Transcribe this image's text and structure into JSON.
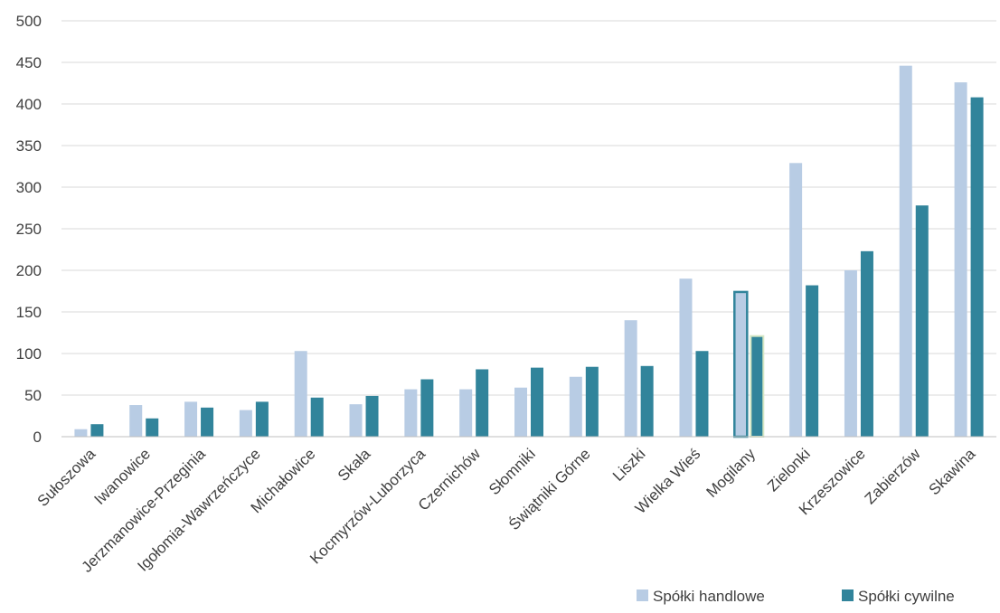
{
  "chart_data": {
    "type": "bar",
    "categories": [
      "Sułoszowa",
      "Iwanowice",
      "Jerzmanowice-Przeginia",
      "Igołomia-Wawrzeńczyce",
      "Michałowice",
      "Skała",
      "Kocmyrzów-Luborzyca",
      "Czernichów",
      "Słomniki",
      "Świątniki Górne",
      "Liszki",
      "Wielka Wieś",
      "Mogilany",
      "Zielonki",
      "Krzeszowice",
      "Zabierzów",
      "Skawina"
    ],
    "series": [
      {
        "name": "Spółki handlowe",
        "color": "#b8cce4",
        "values": [
          9,
          38,
          42,
          32,
          103,
          39,
          57,
          57,
          59,
          72,
          140,
          190,
          174,
          329,
          200,
          446,
          426
        ]
      },
      {
        "name": "Spółki cywilne",
        "color": "#31849b",
        "values": [
          15,
          22,
          35,
          42,
          47,
          49,
          69,
          81,
          83,
          84,
          85,
          103,
          121,
          182,
          223,
          278,
          408
        ]
      }
    ],
    "highlighted_category": "Mogilany",
    "ylim": [
      0,
      500
    ],
    "yticks": [
      "0",
      "50",
      "100",
      "150",
      "200",
      "250",
      "300",
      "350",
      "400",
      "450",
      "500"
    ],
    "grid": true,
    "legend_position": "bottom-right"
  }
}
